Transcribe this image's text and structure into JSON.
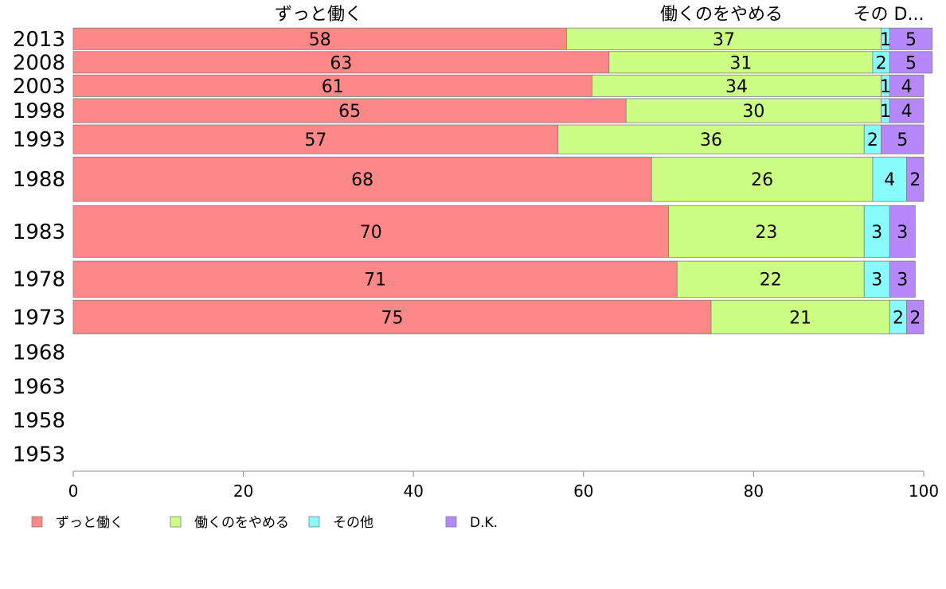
{
  "chart_data": {
    "type": "bar",
    "orientation": "horizontal",
    "stacked": true,
    "categories": [
      "2013",
      "2008",
      "2003",
      "1998",
      "1993",
      "1988",
      "1983",
      "1978",
      "1973",
      "1968",
      "1963",
      "1958",
      "1953"
    ],
    "series": [
      {
        "name": "ずっと働く",
        "values": [
          58,
          63,
          61,
          65,
          57,
          68,
          70,
          71,
          75,
          null,
          null,
          null,
          null
        ],
        "color": "#fe8888"
      },
      {
        "name": "働くのをやめる",
        "values": [
          37,
          31,
          34,
          30,
          36,
          26,
          23,
          22,
          21,
          null,
          null,
          null,
          null
        ],
        "color": "#ccfe84"
      },
      {
        "name": "その他",
        "values": [
          1,
          2,
          1,
          1,
          2,
          4,
          3,
          3,
          2,
          null,
          null,
          null,
          null
        ],
        "color": "#88fcfc"
      },
      {
        "name": "D.K.",
        "values": [
          5,
          5,
          4,
          4,
          5,
          2,
          3,
          3,
          2,
          null,
          null,
          null,
          null
        ],
        "color": "#b688fc"
      }
    ],
    "top_labels": [
      "ずっと働く",
      "働くのをやめる",
      "その D..."
    ],
    "xlim": [
      0,
      100
    ],
    "xticks": [
      0,
      20,
      40,
      60,
      80,
      100
    ],
    "grid": false,
    "legend_position": "bottom"
  }
}
